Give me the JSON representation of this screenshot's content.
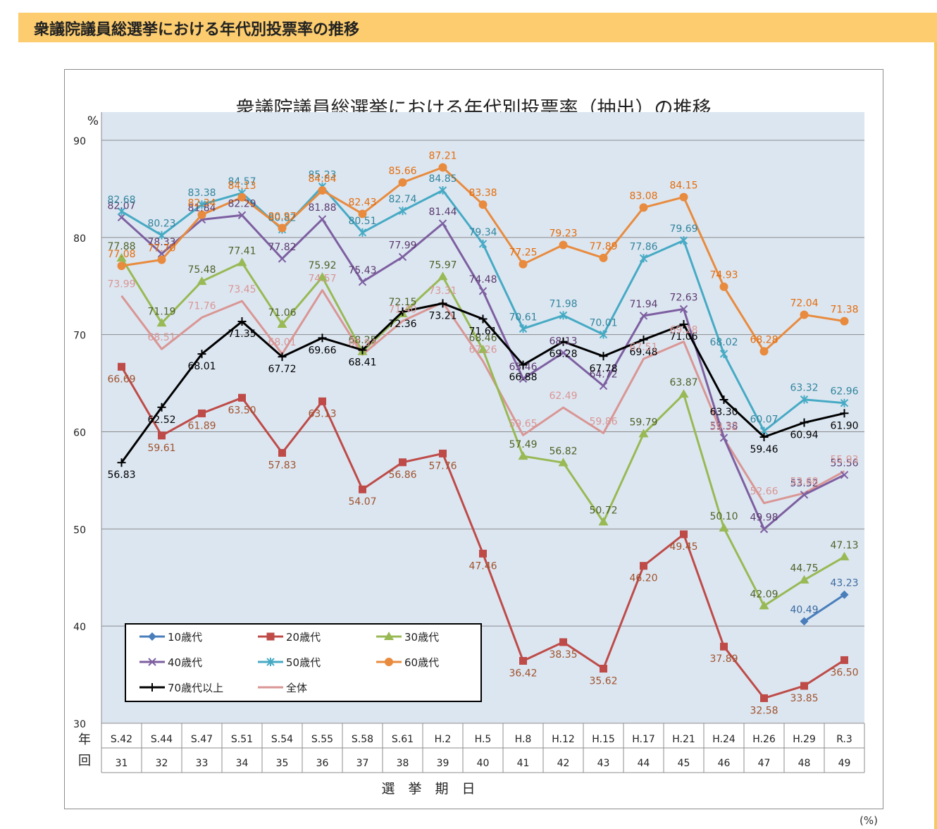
{
  "header": {
    "title": "衆議院議員総選挙における年代別投票率の推移"
  },
  "chart_data": {
    "type": "line",
    "title": "衆議院議員総選挙における年代別投票率（抽出）の推移",
    "ylabel": "%",
    "ylim": [
      30,
      90
    ],
    "yticks": [
      "30",
      "40",
      "50",
      "60",
      "70",
      "80",
      "90"
    ],
    "xlabel": "選　挙　期　日",
    "row_labels": [
      "年",
      "回"
    ],
    "categories": [
      "S.42",
      "S.44",
      "S.47",
      "S.51",
      "S.54",
      "S.55",
      "S.58",
      "S.61",
      "H.2",
      "H.5",
      "H.8",
      "H.12",
      "H.15",
      "H.17",
      "H.21",
      "H.24",
      "H.26",
      "H.29",
      "R.3"
    ],
    "sessions": [
      "31",
      "32",
      "33",
      "34",
      "35",
      "36",
      "37",
      "38",
      "39",
      "40",
      "41",
      "42",
      "43",
      "44",
      "45",
      "46",
      "47",
      "48",
      "49"
    ],
    "grid": true,
    "legend_placement": "bottom-left",
    "series": [
      {
        "name": "10歳代",
        "color": "#4a7ebb",
        "label_color": "#3b6aa0",
        "marker": "diamond",
        "values": [
          null,
          null,
          null,
          null,
          null,
          null,
          null,
          null,
          null,
          null,
          null,
          null,
          null,
          null,
          null,
          null,
          null,
          40.49,
          43.23
        ]
      },
      {
        "name": "20歳代",
        "color": "#be4b48",
        "label_color": "#a0522d",
        "marker": "square",
        "values": [
          66.69,
          59.61,
          61.89,
          63.5,
          57.83,
          63.13,
          54.07,
          56.86,
          57.76,
          47.46,
          36.42,
          38.35,
          35.62,
          46.2,
          49.45,
          37.89,
          32.58,
          33.85,
          36.5
        ]
      },
      {
        "name": "30歳代",
        "color": "#98b954",
        "label_color": "#4f6228",
        "marker": "triangle",
        "values": [
          77.88,
          71.19,
          75.48,
          77.41,
          71.06,
          75.92,
          68.25,
          72.15,
          75.97,
          68.46,
          57.49,
          56.82,
          50.72,
          59.79,
          63.87,
          50.1,
          42.09,
          44.75,
          47.13
        ]
      },
      {
        "name": "40歳代",
        "color": "#7d5fa0",
        "label_color": "#5b3a6e",
        "marker": "x",
        "values": [
          82.07,
          78.33,
          81.84,
          82.29,
          77.82,
          81.88,
          75.43,
          77.99,
          81.44,
          74.48,
          65.46,
          68.13,
          64.72,
          71.94,
          72.63,
          59.38,
          49.98,
          53.52,
          55.56
        ]
      },
      {
        "name": "50歳代",
        "color": "#46aac4",
        "label_color": "#31859c",
        "marker": "star",
        "values": [
          82.68,
          80.23,
          83.38,
          84.57,
          80.82,
          85.23,
          80.51,
          82.74,
          84.85,
          79.34,
          70.61,
          71.98,
          70.01,
          77.86,
          79.69,
          68.02,
          60.07,
          63.32,
          62.96
        ]
      },
      {
        "name": "60歳代",
        "color": "#e88b3e",
        "label_color": "#e46c0a",
        "marker": "circle",
        "values": [
          77.08,
          77.7,
          82.34,
          84.13,
          80.97,
          84.84,
          82.43,
          85.66,
          87.21,
          83.38,
          77.25,
          79.23,
          77.89,
          83.08,
          84.15,
          74.93,
          68.28,
          72.04,
          71.38
        ]
      },
      {
        "name": "70歳代以上",
        "color": "#000000",
        "label_color": "#000000",
        "marker": "plus",
        "values": [
          56.83,
          62.52,
          68.01,
          71.35,
          67.72,
          69.66,
          68.41,
          72.36,
          73.21,
          71.61,
          66.88,
          69.28,
          67.78,
          69.48,
          71.06,
          63.3,
          59.46,
          60.94,
          61.9
        ]
      },
      {
        "name": "全体",
        "color": "#d99694",
        "label_color": "#d99694",
        "marker": "none",
        "values": [
          73.99,
          68.51,
          71.76,
          73.45,
          68.01,
          74.57,
          67.94,
          71.4,
          73.31,
          67.26,
          59.65,
          62.49,
          59.86,
          67.51,
          69.28,
          59.32,
          52.66,
          53.68,
          55.93
        ]
      }
    ]
  },
  "footer": {
    "unit_note": "(%)"
  }
}
